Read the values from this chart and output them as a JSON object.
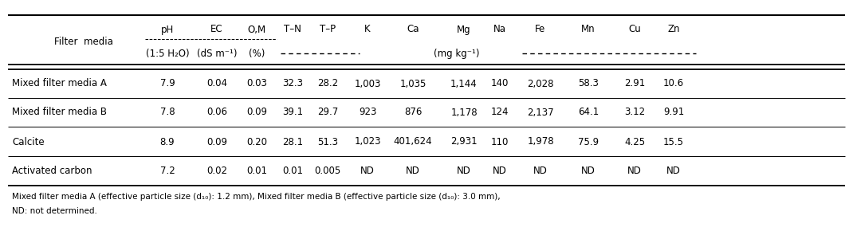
{
  "col_headers_line1": [
    "pH",
    "EC",
    "O,M",
    "T–N",
    "T–P",
    "K",
    "Ca",
    "Mg",
    "Na",
    "Fe",
    "Mn",
    "Cu",
    "Zn"
  ],
  "col_headers_line2_left": [
    "(1:5 H₂O)",
    "(dS m⁻¹)",
    "(%)"
  ],
  "col_headers_line2_unit": "(mg kg⁻¹)",
  "row_header": "Filter  media",
  "rows": [
    [
      "Mixed filter media A",
      "7.9",
      "0.04",
      "0.03",
      "32.3",
      "28.2",
      "1,003",
      "1,035",
      "1,144",
      "140",
      "2,028",
      "58.3",
      "2.91",
      "10.6"
    ],
    [
      "Mixed filter media B",
      "7.8",
      "0.06",
      "0.09",
      "39.1",
      "29.7",
      "923",
      "876",
      "1,178",
      "124",
      "2,137",
      "64.1",
      "3.12",
      "9.91"
    ],
    [
      "Calcite",
      "8.9",
      "0.09",
      "0.20",
      "28.1",
      "51.3",
      "1,023",
      "401,624",
      "2,931",
      "110",
      "1,978",
      "75.9",
      "4.25",
      "15.5"
    ],
    [
      "Activated carbon",
      "7.2",
      "0.02",
      "0.01",
      "0.01",
      "0.005",
      "ND",
      "ND",
      "ND",
      "ND",
      "ND",
      "ND",
      "ND",
      "ND"
    ]
  ],
  "footnote1": "Mixed filter media A (effective particle size (d₁₀): 1.2 mm), Mixed filter media B (effective particle size (d₁₀): 3.0 mm),",
  "footnote2": "ND: not determined.",
  "font_size": 8.5,
  "font_family": "DejaVu Sans"
}
